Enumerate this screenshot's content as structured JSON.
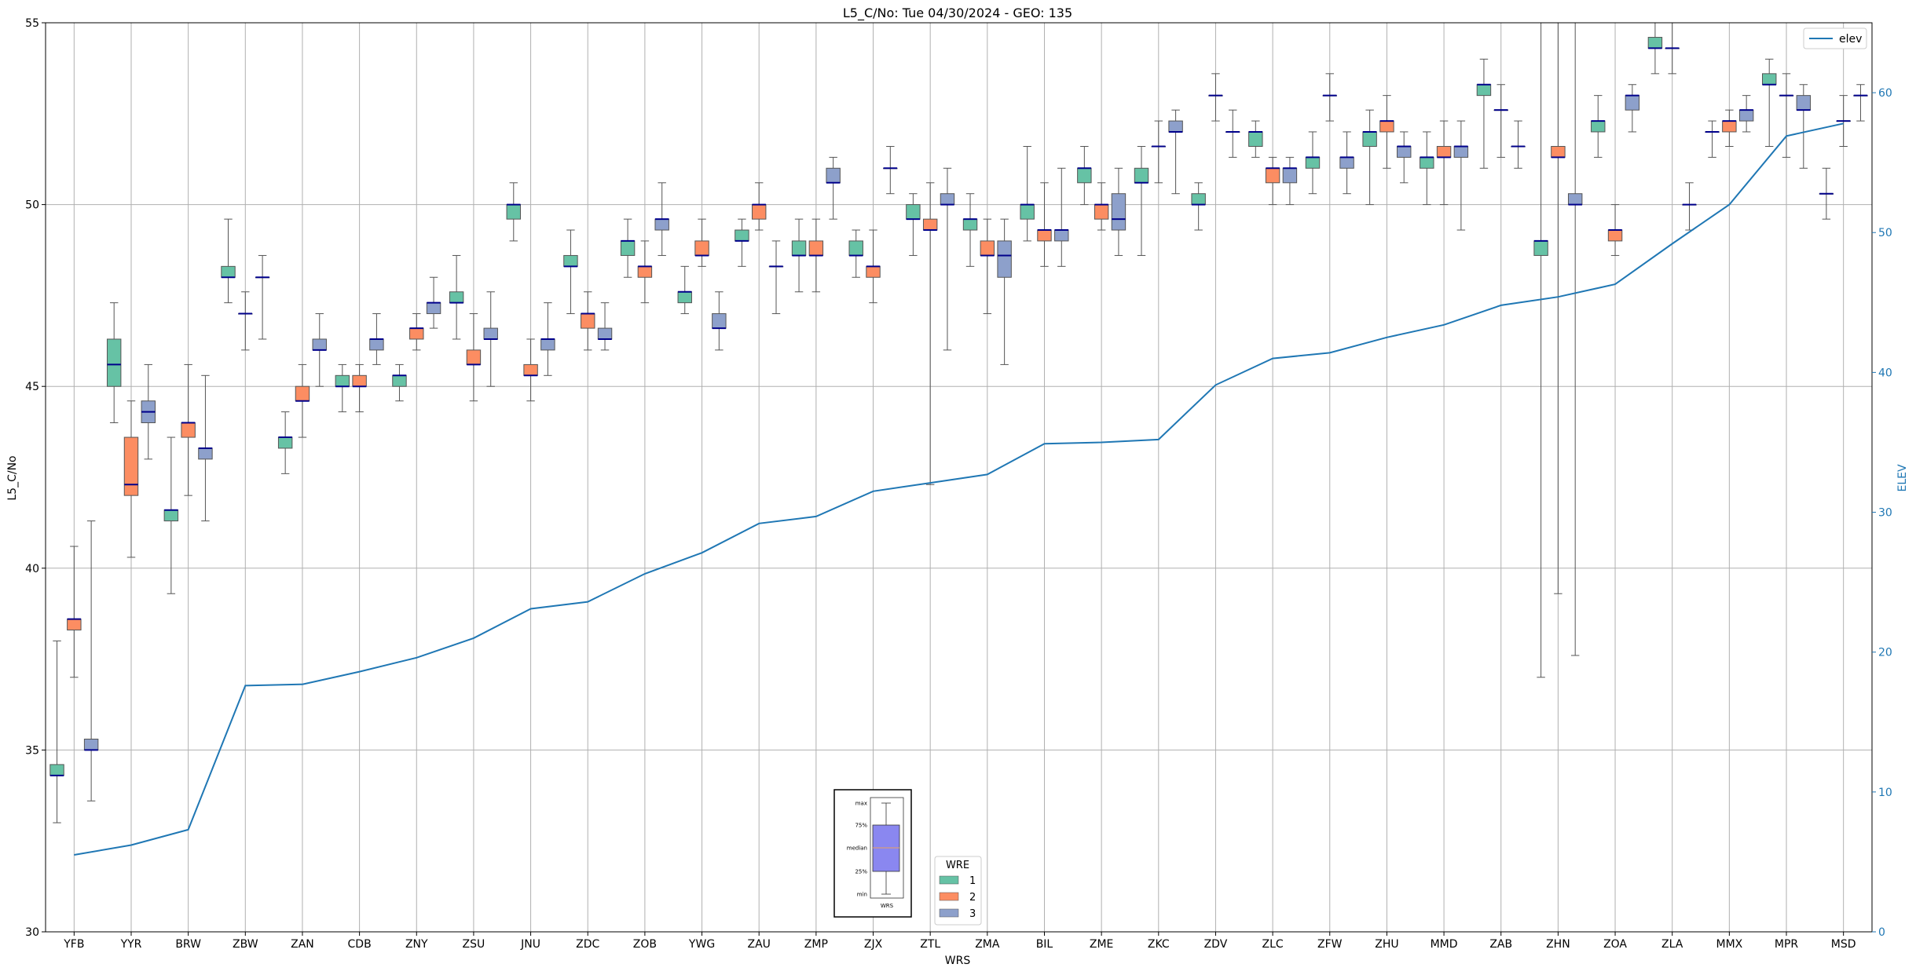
{
  "chart_data": {
    "type": "box",
    "title": "L5_C/No: Tue 04/30/2024 - GEO: 135",
    "xlabel": "WRS",
    "ylabel": "L5_C/No",
    "ylabel_right": "ELEV",
    "ylim": [
      30,
      55
    ],
    "ylim_right": [
      0,
      65
    ],
    "yticks": [
      30,
      35,
      40,
      45,
      50,
      55
    ],
    "yticks_right": [
      0,
      10,
      20,
      30,
      40,
      50,
      60
    ],
    "grid": true,
    "colors": {
      "1": "#66c2a5",
      "2": "#fc8d62",
      "3": "#8da0cb",
      "elev": "#1f77b4",
      "median": "#00008b"
    },
    "categories": [
      "YFB",
      "YYR",
      "BRW",
      "ZBW",
      "ZAN",
      "CDB",
      "ZNY",
      "ZSU",
      "JNU",
      "ZDC",
      "ZOB",
      "YWG",
      "ZAU",
      "ZMP",
      "ZJX",
      "ZTL",
      "ZMA",
      "BIL",
      "ZME",
      "ZKC",
      "ZDV",
      "ZLC",
      "ZFW",
      "ZHU",
      "MMD",
      "ZAB",
      "ZHN",
      "ZOA",
      "ZLA",
      "MMX",
      "MPR",
      "MSD"
    ],
    "elev_legend": "elev",
    "elev": [
      5.5,
      6.2,
      7.3,
      17.6,
      17.7,
      18.6,
      19.6,
      21.0,
      23.1,
      23.6,
      25.6,
      27.1,
      29.2,
      29.7,
      31.5,
      32.1,
      32.7,
      34.9,
      35.0,
      35.2,
      39.1,
      41.0,
      41.4,
      42.5,
      43.4,
      44.8,
      45.4,
      46.3,
      49.2,
      52.0,
      56.9,
      57.8
    ],
    "legend": {
      "title": "WRE",
      "entries": [
        "1",
        "2",
        "3"
      ]
    },
    "inset": {
      "labels": [
        "max",
        "75%",
        "median",
        "25%",
        "min"
      ],
      "xlabel": "WRS"
    },
    "boxes": [
      {
        "cat": "YFB",
        "wre": 1,
        "min": 33.0,
        "q1": 34.3,
        "median": 34.3,
        "q3": 34.6,
        "max": 38.0
      },
      {
        "cat": "YFB",
        "wre": 2,
        "min": 37.0,
        "q1": 38.3,
        "median": 38.6,
        "q3": 38.6,
        "max": 40.6
      },
      {
        "cat": "YFB",
        "wre": 3,
        "min": 33.6,
        "q1": 35.0,
        "median": 35.0,
        "q3": 35.3,
        "max": 41.3
      },
      {
        "cat": "YYR",
        "wre": 1,
        "min": 44.0,
        "q1": 45.0,
        "median": 45.6,
        "q3": 46.3,
        "max": 47.3
      },
      {
        "cat": "YYR",
        "wre": 2,
        "min": 40.3,
        "q1": 42.0,
        "median": 42.3,
        "q3": 43.6,
        "max": 44.6
      },
      {
        "cat": "YYR",
        "wre": 3,
        "min": 43.0,
        "q1": 44.0,
        "median": 44.3,
        "q3": 44.6,
        "max": 45.6
      },
      {
        "cat": "BRW",
        "wre": 1,
        "min": 39.3,
        "q1": 41.3,
        "median": 41.6,
        "q3": 41.6,
        "max": 43.6
      },
      {
        "cat": "BRW",
        "wre": 2,
        "min": 42.0,
        "q1": 43.6,
        "median": 44.0,
        "q3": 44.0,
        "max": 45.6
      },
      {
        "cat": "BRW",
        "wre": 3,
        "min": 41.3,
        "q1": 43.0,
        "median": 43.3,
        "q3": 43.3,
        "max": 45.3
      },
      {
        "cat": "ZBW",
        "wre": 1,
        "min": 47.3,
        "q1": 48.0,
        "median": 48.0,
        "q3": 48.3,
        "max": 49.6
      },
      {
        "cat": "ZBW",
        "wre": 2,
        "min": 46.0,
        "q1": 47.0,
        "median": 47.0,
        "q3": 47.0,
        "max": 47.6
      },
      {
        "cat": "ZBW",
        "wre": 3,
        "min": 46.3,
        "q1": 48.0,
        "median": 48.0,
        "q3": 48.0,
        "max": 48.6
      },
      {
        "cat": "ZAN",
        "wre": 1,
        "min": 42.6,
        "q1": 43.3,
        "median": 43.6,
        "q3": 43.6,
        "max": 44.3
      },
      {
        "cat": "ZAN",
        "wre": 2,
        "min": 43.6,
        "q1": 44.6,
        "median": 44.6,
        "q3": 45.0,
        "max": 45.6
      },
      {
        "cat": "ZAN",
        "wre": 3,
        "min": 45.0,
        "q1": 46.0,
        "median": 46.0,
        "q3": 46.3,
        "max": 47.0
      },
      {
        "cat": "CDB",
        "wre": 1,
        "min": 44.3,
        "q1": 45.0,
        "median": 45.0,
        "q3": 45.3,
        "max": 45.6
      },
      {
        "cat": "CDB",
        "wre": 2,
        "min": 44.3,
        "q1": 45.0,
        "median": 45.0,
        "q3": 45.3,
        "max": 45.6
      },
      {
        "cat": "CDB",
        "wre": 3,
        "min": 45.6,
        "q1": 46.0,
        "median": 46.3,
        "q3": 46.3,
        "max": 47.0
      },
      {
        "cat": "ZNY",
        "wre": 1,
        "min": 44.6,
        "q1": 45.0,
        "median": 45.3,
        "q3": 45.3,
        "max": 45.6
      },
      {
        "cat": "ZNY",
        "wre": 2,
        "min": 46.0,
        "q1": 46.3,
        "median": 46.6,
        "q3": 46.6,
        "max": 47.0
      },
      {
        "cat": "ZNY",
        "wre": 3,
        "min": 46.6,
        "q1": 47.0,
        "median": 47.3,
        "q3": 47.3,
        "max": 48.0
      },
      {
        "cat": "ZSU",
        "wre": 1,
        "min": 46.3,
        "q1": 47.3,
        "median": 47.3,
        "q3": 47.6,
        "max": 48.6
      },
      {
        "cat": "ZSU",
        "wre": 2,
        "min": 44.6,
        "q1": 45.6,
        "median": 45.6,
        "q3": 46.0,
        "max": 47.0
      },
      {
        "cat": "ZSU",
        "wre": 3,
        "min": 45.0,
        "q1": 46.3,
        "median": 46.3,
        "q3": 46.6,
        "max": 47.6
      },
      {
        "cat": "JNU",
        "wre": 1,
        "min": 49.0,
        "q1": 49.6,
        "median": 50.0,
        "q3": 50.0,
        "max": 50.6
      },
      {
        "cat": "JNU",
        "wre": 2,
        "min": 44.6,
        "q1": 45.3,
        "median": 45.3,
        "q3": 45.6,
        "max": 46.3
      },
      {
        "cat": "JNU",
        "wre": 3,
        "min": 45.3,
        "q1": 46.0,
        "median": 46.3,
        "q3": 46.3,
        "max": 47.3
      },
      {
        "cat": "ZDC",
        "wre": 1,
        "min": 47.0,
        "q1": 48.3,
        "median": 48.3,
        "q3": 48.6,
        "max": 49.3
      },
      {
        "cat": "ZDC",
        "wre": 2,
        "min": 46.0,
        "q1": 46.6,
        "median": 47.0,
        "q3": 47.0,
        "max": 47.6
      },
      {
        "cat": "ZDC",
        "wre": 3,
        "min": 46.0,
        "q1": 46.3,
        "median": 46.3,
        "q3": 46.6,
        "max": 47.3
      },
      {
        "cat": "ZOB",
        "wre": 1,
        "min": 48.0,
        "q1": 48.6,
        "median": 49.0,
        "q3": 49.0,
        "max": 49.6
      },
      {
        "cat": "ZOB",
        "wre": 2,
        "min": 47.3,
        "q1": 48.0,
        "median": 48.3,
        "q3": 48.3,
        "max": 49.0
      },
      {
        "cat": "ZOB",
        "wre": 3,
        "min": 48.6,
        "q1": 49.3,
        "median": 49.6,
        "q3": 49.6,
        "max": 50.6
      },
      {
        "cat": "YWG",
        "wre": 1,
        "min": 47.0,
        "q1": 47.3,
        "median": 47.6,
        "q3": 47.6,
        "max": 48.3
      },
      {
        "cat": "YWG",
        "wre": 2,
        "min": 48.3,
        "q1": 48.6,
        "median": 48.6,
        "q3": 49.0,
        "max": 49.6
      },
      {
        "cat": "YWG",
        "wre": 3,
        "min": 46.0,
        "q1": 46.6,
        "median": 46.6,
        "q3": 47.0,
        "max": 47.6
      },
      {
        "cat": "ZAU",
        "wre": 1,
        "min": 48.3,
        "q1": 49.0,
        "median": 49.0,
        "q3": 49.3,
        "max": 49.6
      },
      {
        "cat": "ZAU",
        "wre": 2,
        "min": 49.3,
        "q1": 49.6,
        "median": 50.0,
        "q3": 50.0,
        "max": 50.6
      },
      {
        "cat": "ZAU",
        "wre": 3,
        "min": 47.0,
        "q1": 48.3,
        "median": 48.3,
        "q3": 48.3,
        "max": 49.0
      },
      {
        "cat": "ZMP",
        "wre": 1,
        "min": 47.6,
        "q1": 48.6,
        "median": 48.6,
        "q3": 49.0,
        "max": 49.6
      },
      {
        "cat": "ZMP",
        "wre": 2,
        "min": 47.6,
        "q1": 48.6,
        "median": 48.6,
        "q3": 49.0,
        "max": 49.6
      },
      {
        "cat": "ZMP",
        "wre": 3,
        "min": 49.6,
        "q1": 50.6,
        "median": 50.6,
        "q3": 51.0,
        "max": 51.3
      },
      {
        "cat": "ZJX",
        "wre": 1,
        "min": 48.0,
        "q1": 48.6,
        "median": 48.6,
        "q3": 49.0,
        "max": 49.3
      },
      {
        "cat": "ZJX",
        "wre": 2,
        "min": 47.3,
        "q1": 48.0,
        "median": 48.3,
        "q3": 48.3,
        "max": 49.3
      },
      {
        "cat": "ZJX",
        "wre": 3,
        "min": 50.3,
        "q1": 51.0,
        "median": 51.0,
        "q3": 51.0,
        "max": 51.6
      },
      {
        "cat": "ZTL",
        "wre": 1,
        "min": 48.6,
        "q1": 49.6,
        "median": 49.6,
        "q3": 50.0,
        "max": 50.3
      },
      {
        "cat": "ZTL",
        "wre": 2,
        "min": 42.3,
        "q1": 49.3,
        "median": 49.3,
        "q3": 49.6,
        "max": 50.6
      },
      {
        "cat": "ZTL",
        "wre": 3,
        "min": 46.0,
        "q1": 50.0,
        "median": 50.0,
        "q3": 50.3,
        "max": 51.0
      },
      {
        "cat": "ZMA",
        "wre": 1,
        "min": 48.3,
        "q1": 49.3,
        "median": 49.6,
        "q3": 49.6,
        "max": 50.3
      },
      {
        "cat": "ZMA",
        "wre": 2,
        "min": 47.0,
        "q1": 48.6,
        "median": 48.6,
        "q3": 49.0,
        "max": 49.6
      },
      {
        "cat": "ZMA",
        "wre": 3,
        "min": 45.6,
        "q1": 48.0,
        "median": 48.6,
        "q3": 49.0,
        "max": 49.6
      },
      {
        "cat": "BIL",
        "wre": 1,
        "min": 49.0,
        "q1": 49.6,
        "median": 50.0,
        "q3": 50.0,
        "max": 51.6
      },
      {
        "cat": "BIL",
        "wre": 2,
        "min": 48.3,
        "q1": 49.0,
        "median": 49.3,
        "q3": 49.3,
        "max": 50.6
      },
      {
        "cat": "BIL",
        "wre": 3,
        "min": 48.3,
        "q1": 49.0,
        "median": 49.3,
        "q3": 49.3,
        "max": 51.0
      },
      {
        "cat": "ZME",
        "wre": 1,
        "min": 50.0,
        "q1": 50.6,
        "median": 51.0,
        "q3": 51.0,
        "max": 51.6
      },
      {
        "cat": "ZME",
        "wre": 2,
        "min": 49.3,
        "q1": 49.6,
        "median": 50.0,
        "q3": 50.0,
        "max": 50.6
      },
      {
        "cat": "ZME",
        "wre": 3,
        "min": 48.6,
        "q1": 49.3,
        "median": 49.6,
        "q3": 50.3,
        "max": 51.0
      },
      {
        "cat": "ZKC",
        "wre": 1,
        "min": 48.6,
        "q1": 50.6,
        "median": 50.6,
        "q3": 51.0,
        "max": 51.6
      },
      {
        "cat": "ZKC",
        "wre": 2,
        "min": 50.6,
        "q1": 51.6,
        "median": 51.6,
        "q3": 51.6,
        "max": 52.3
      },
      {
        "cat": "ZKC",
        "wre": 3,
        "min": 50.3,
        "q1": 52.0,
        "median": 52.0,
        "q3": 52.3,
        "max": 52.6
      },
      {
        "cat": "ZDV",
        "wre": 1,
        "min": 49.3,
        "q1": 50.0,
        "median": 50.0,
        "q3": 50.3,
        "max": 50.6
      },
      {
        "cat": "ZDV",
        "wre": 2,
        "min": 52.3,
        "q1": 53.0,
        "median": 53.0,
        "q3": 53.0,
        "max": 53.6
      },
      {
        "cat": "ZDV",
        "wre": 3,
        "min": 51.3,
        "q1": 52.0,
        "median": 52.0,
        "q3": 52.0,
        "max": 52.6
      },
      {
        "cat": "ZLC",
        "wre": 1,
        "min": 51.3,
        "q1": 51.6,
        "median": 52.0,
        "q3": 52.0,
        "max": 52.3
      },
      {
        "cat": "ZLC",
        "wre": 2,
        "min": 50.0,
        "q1": 50.6,
        "median": 51.0,
        "q3": 51.0,
        "max": 51.3
      },
      {
        "cat": "ZLC",
        "wre": 3,
        "min": 50.0,
        "q1": 50.6,
        "median": 51.0,
        "q3": 51.0,
        "max": 51.3
      },
      {
        "cat": "ZFW",
        "wre": 1,
        "min": 50.3,
        "q1": 51.0,
        "median": 51.3,
        "q3": 51.3,
        "max": 52.0
      },
      {
        "cat": "ZFW",
        "wre": 2,
        "min": 52.3,
        "q1": 53.0,
        "median": 53.0,
        "q3": 53.0,
        "max": 53.6
      },
      {
        "cat": "ZFW",
        "wre": 3,
        "min": 50.3,
        "q1": 51.0,
        "median": 51.3,
        "q3": 51.3,
        "max": 52.0
      },
      {
        "cat": "ZHU",
        "wre": 1,
        "min": 50.0,
        "q1": 51.6,
        "median": 52.0,
        "q3": 52.0,
        "max": 52.6
      },
      {
        "cat": "ZHU",
        "wre": 2,
        "min": 51.0,
        "q1": 52.0,
        "median": 52.3,
        "q3": 52.3,
        "max": 53.0
      },
      {
        "cat": "ZHU",
        "wre": 3,
        "min": 50.6,
        "q1": 51.3,
        "median": 51.6,
        "q3": 51.6,
        "max": 52.0
      },
      {
        "cat": "MMD",
        "wre": 1,
        "min": 50.0,
        "q1": 51.0,
        "median": 51.3,
        "q3": 51.3,
        "max": 52.0
      },
      {
        "cat": "MMD",
        "wre": 2,
        "min": 50.0,
        "q1": 51.3,
        "median": 51.3,
        "q3": 51.6,
        "max": 52.3
      },
      {
        "cat": "MMD",
        "wre": 3,
        "min": 49.3,
        "q1": 51.3,
        "median": 51.6,
        "q3": 51.6,
        "max": 52.3
      },
      {
        "cat": "ZAB",
        "wre": 1,
        "min": 51.0,
        "q1": 53.0,
        "median": 53.3,
        "q3": 53.3,
        "max": 54.0
      },
      {
        "cat": "ZAB",
        "wre": 2,
        "min": 51.3,
        "q1": 52.6,
        "median": 52.6,
        "q3": 52.6,
        "max": 53.3
      },
      {
        "cat": "ZAB",
        "wre": 3,
        "min": 51.0,
        "q1": 51.6,
        "median": 51.6,
        "q3": 51.6,
        "max": 52.3
      },
      {
        "cat": "ZHN",
        "wre": 1,
        "min": 37.0,
        "q1": 48.6,
        "median": 49.0,
        "q3": 49.0,
        "max": 55.0
      },
      {
        "cat": "ZHN",
        "wre": 2,
        "min": 39.3,
        "q1": 51.3,
        "median": 51.3,
        "q3": 51.6,
        "max": 55.0
      },
      {
        "cat": "ZHN",
        "wre": 3,
        "min": 37.6,
        "q1": 50.0,
        "median": 50.0,
        "q3": 50.3,
        "max": 55.0
      },
      {
        "cat": "ZOA",
        "wre": 1,
        "min": 51.3,
        "q1": 52.0,
        "median": 52.3,
        "q3": 52.3,
        "max": 53.0
      },
      {
        "cat": "ZOA",
        "wre": 2,
        "min": 48.6,
        "q1": 49.0,
        "median": 49.3,
        "q3": 49.3,
        "max": 50.0
      },
      {
        "cat": "ZOA",
        "wre": 3,
        "min": 52.0,
        "q1": 52.6,
        "median": 53.0,
        "q3": 53.0,
        "max": 53.3
      },
      {
        "cat": "ZLA",
        "wre": 1,
        "min": 53.6,
        "q1": 54.3,
        "median": 54.3,
        "q3": 54.6,
        "max": 55.0
      },
      {
        "cat": "ZLA",
        "wre": 2,
        "min": 53.6,
        "q1": 54.3,
        "median": 54.3,
        "q3": 54.3,
        "max": 55.0
      },
      {
        "cat": "ZLA",
        "wre": 3,
        "min": 49.3,
        "q1": 50.0,
        "median": 50.0,
        "q3": 50.0,
        "max": 50.6
      },
      {
        "cat": "MMX",
        "wre": 1,
        "min": 51.3,
        "q1": 52.0,
        "median": 52.0,
        "q3": 52.0,
        "max": 52.3
      },
      {
        "cat": "MMX",
        "wre": 2,
        "min": 51.6,
        "q1": 52.0,
        "median": 52.3,
        "q3": 52.3,
        "max": 52.6
      },
      {
        "cat": "MMX",
        "wre": 3,
        "min": 52.0,
        "q1": 52.3,
        "median": 52.6,
        "q3": 52.6,
        "max": 53.0
      },
      {
        "cat": "MPR",
        "wre": 1,
        "min": 51.6,
        "q1": 53.3,
        "median": 53.3,
        "q3": 53.6,
        "max": 54.0
      },
      {
        "cat": "MPR",
        "wre": 2,
        "min": 51.3,
        "q1": 53.0,
        "median": 53.0,
        "q3": 53.0,
        "max": 53.6
      },
      {
        "cat": "MPR",
        "wre": 3,
        "min": 51.0,
        "q1": 52.6,
        "median": 52.6,
        "q3": 53.0,
        "max": 53.3
      },
      {
        "cat": "MSD",
        "wre": 1,
        "min": 49.6,
        "q1": 50.3,
        "median": 50.3,
        "q3": 50.3,
        "max": 51.0
      },
      {
        "cat": "MSD",
        "wre": 2,
        "min": 51.6,
        "q1": 52.3,
        "median": 52.3,
        "q3": 52.3,
        "max": 53.0
      },
      {
        "cat": "MSD",
        "wre": 3,
        "min": 52.3,
        "q1": 53.0,
        "median": 53.0,
        "q3": 53.0,
        "max": 53.3
      }
    ]
  }
}
